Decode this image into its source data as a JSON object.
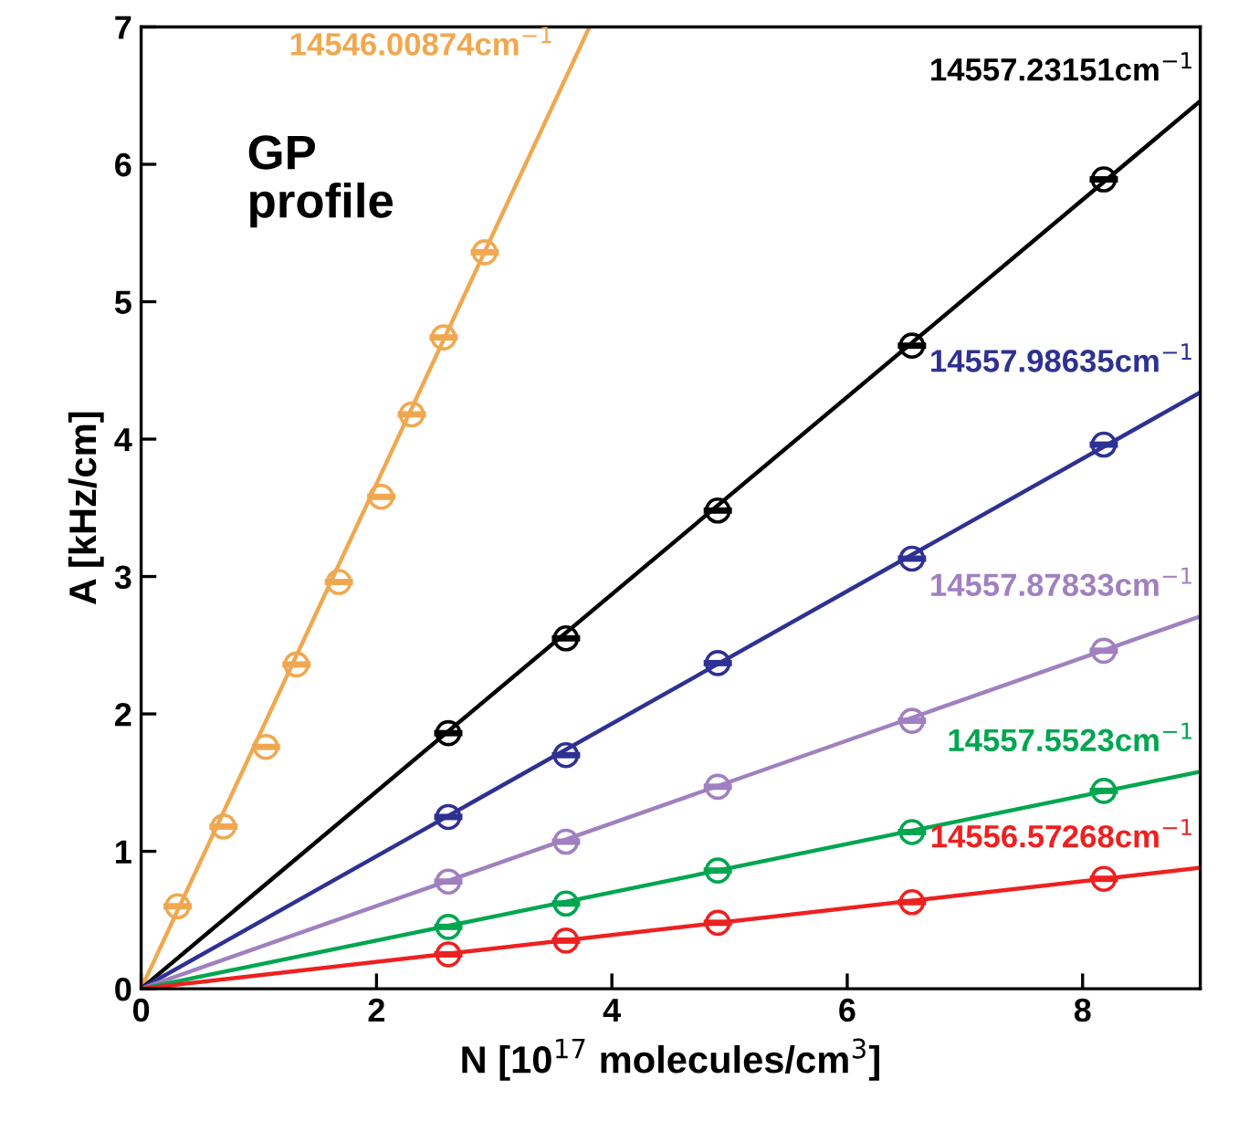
{
  "chart_data": {
    "type": "scatter",
    "xlabel": "N [10$^{17}$ molecules/cm$^{3}$]",
    "ylabel": "A [kHz/cm]",
    "xlim": [
      0,
      9
    ],
    "ylim": [
      0,
      7
    ],
    "xticks": [
      0,
      2,
      4,
      6,
      8
    ],
    "yticks": [
      0,
      1,
      2,
      3,
      4,
      5,
      6,
      7
    ],
    "grid": false,
    "legend": false,
    "marker": "circle",
    "series": [
      {
        "color": "#f0a850",
        "x": [
          0.31,
          0.7,
          1.06,
          1.32,
          1.68,
          2.04,
          2.3,
          2.57,
          2.92
        ],
        "values": [
          0.6,
          1.18,
          1.76,
          2.36,
          2.96,
          3.58,
          4.18,
          4.74,
          5.36
        ],
        "xerrors": [
          0.12,
          0.12,
          0.12,
          0.12,
          0.12,
          0.12,
          0.12,
          0.12,
          0.12
        ]
      },
      {
        "color": "#000000",
        "x": [
          2.61,
          3.61,
          4.9,
          6.55,
          8.18
        ],
        "values": [
          1.86,
          2.55,
          3.48,
          4.68,
          5.89
        ],
        "xerrors": [
          0.12,
          0.12,
          0.12,
          0.12,
          0.12
        ]
      },
      {
        "color": "#2e3192",
        "x": [
          2.61,
          3.61,
          4.9,
          6.55,
          8.18
        ],
        "values": [
          1.25,
          1.7,
          2.37,
          3.13,
          3.96
        ],
        "xerrors": [
          0.12,
          0.12,
          0.12,
          0.12,
          0.12
        ]
      },
      {
        "color": "#a080c0",
        "x": [
          2.61,
          3.61,
          4.9,
          6.55,
          8.18
        ],
        "values": [
          0.78,
          1.07,
          1.47,
          1.95,
          2.46
        ],
        "xerrors": [
          0.12,
          0.12,
          0.12,
          0.12,
          0.12
        ]
      },
      {
        "color": "#00a650",
        "x": [
          2.61,
          3.61,
          4.9,
          6.55,
          8.18
        ],
        "values": [
          0.45,
          0.62,
          0.86,
          1.14,
          1.44
        ],
        "xerrors": [
          0.12,
          0.12,
          0.12,
          0.12,
          0.12
        ]
      },
      {
        "color": "#ee2020",
        "x": [
          2.61,
          3.61,
          4.9,
          6.55,
          8.18
        ],
        "values": [
          0.25,
          0.35,
          0.48,
          0.63,
          0.8
        ],
        "xerrors": [
          0.12,
          0.12,
          0.12,
          0.12,
          0.12
        ]
      },
      {
        "type": "line",
        "marker": "none",
        "name": "14546.00874cm$^{−1}$",
        "color": "#f0a850",
        "x": [
          0,
          3.81
        ],
        "values": [
          0,
          7
        ]
      },
      {
        "type": "line",
        "marker": "none",
        "name": "14557.23151cm$^{−1}$",
        "color": "#000000",
        "x": [
          0,
          9
        ],
        "values": [
          0,
          6.46
        ]
      },
      {
        "type": "line",
        "marker": "none",
        "name": "14557.98635cm$^{−1}$",
        "color": "#2e3192",
        "x": [
          0,
          9
        ],
        "values": [
          0,
          4.34
        ]
      },
      {
        "type": "line",
        "marker": "none",
        "name": "14557.87833cm$^{−1}$",
        "color": "#a080c0",
        "x": [
          0,
          9
        ],
        "values": [
          0,
          2.71
        ]
      },
      {
        "type": "line",
        "marker": "none",
        "name": "14557.5523cm$^{−1}$",
        "color": "#00a650",
        "x": [
          0,
          9
        ],
        "values": [
          0,
          1.58
        ]
      },
      {
        "type": "line",
        "marker": "none",
        "name": "14556.57268cm$^{−1}$",
        "color": "#ee2020",
        "x": [
          0,
          9
        ],
        "values": [
          0,
          0.88
        ]
      }
    ],
    "annotations": [
      "GP\nprofile"
    ]
  }
}
